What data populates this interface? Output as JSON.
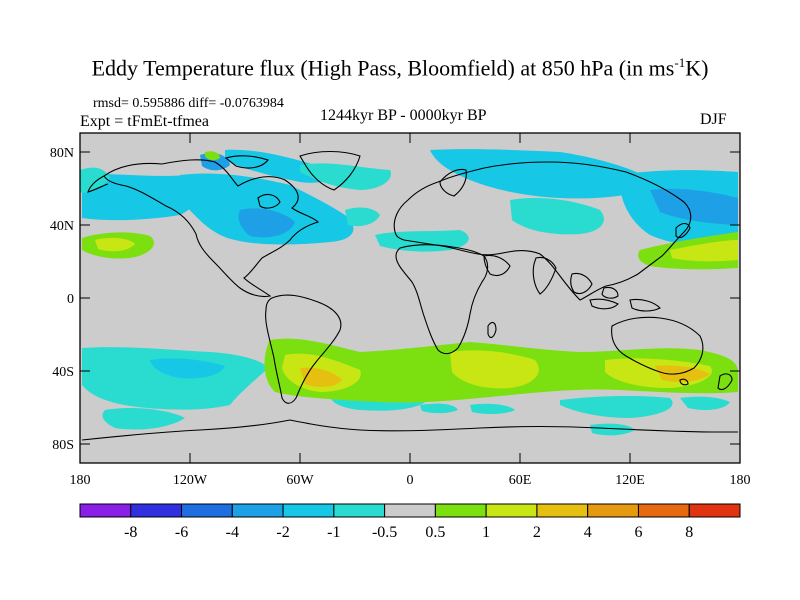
{
  "title": {
    "main": "Eddy Temperature flux (High Pass, Bloomfield) at 850 hPa (in ms",
    "sup": "-1",
    "tail": "K)"
  },
  "stats": "rmsd= 0.595886 diff= -0.0763984",
  "experiment": "Expt = tFmEt-tfmea",
  "period": "1244kyr BP - 0000kyr BP",
  "season": "DJF",
  "axes": {
    "lat_ticks": [
      "80N",
      "40N",
      "0",
      "40S",
      "80S"
    ],
    "lon_ticks": [
      "180",
      "120W",
      "60W",
      "0",
      "60E",
      "120E",
      "180"
    ]
  },
  "colorbar": {
    "colors": [
      "#8a1fe8",
      "#3030e0",
      "#1e6ee0",
      "#1ea0e6",
      "#16c8e6",
      "#2adcd0",
      "#cccccc",
      "#7ce010",
      "#c8e614",
      "#e6c010",
      "#e69a10",
      "#e66a10",
      "#e03410"
    ],
    "labels": [
      "-8",
      "-6",
      "-4",
      "-2",
      "-1",
      "-0.5",
      "0.5",
      "1",
      "2",
      "4",
      "6",
      "8"
    ]
  },
  "colors": {
    "ocean_land": "#cccccc",
    "light_cyan": "#2adcd0",
    "cyan": "#16c8e6",
    "sky_blue": "#1ea0e6",
    "green": "#7ce010",
    "yellow_green": "#c8e614",
    "orange": "#e6c010"
  }
}
